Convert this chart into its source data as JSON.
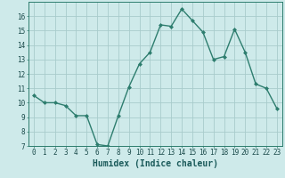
{
  "x": [
    0,
    1,
    2,
    3,
    4,
    5,
    6,
    7,
    8,
    9,
    10,
    11,
    12,
    13,
    14,
    15,
    16,
    17,
    18,
    19,
    20,
    21,
    22,
    23
  ],
  "y": [
    10.5,
    10.0,
    10.0,
    9.8,
    9.1,
    9.1,
    7.1,
    7.0,
    9.1,
    11.1,
    12.7,
    13.5,
    15.4,
    15.3,
    16.5,
    15.7,
    14.9,
    13.0,
    13.2,
    15.1,
    13.5,
    11.3,
    11.0,
    9.6
  ],
  "line_color": "#2d7d6e",
  "marker": "D",
  "marker_size": 2.0,
  "bg_color": "#ceeaea",
  "grid_color": "#a8cccc",
  "xlabel": "Humidex (Indice chaleur)",
  "ylim": [
    7,
    17
  ],
  "xlim": [
    -0.5,
    23.5
  ],
  "yticks": [
    7,
    8,
    9,
    10,
    11,
    12,
    13,
    14,
    15,
    16
  ],
  "xticks": [
    0,
    1,
    2,
    3,
    4,
    5,
    6,
    7,
    8,
    9,
    10,
    11,
    12,
    13,
    14,
    15,
    16,
    17,
    18,
    19,
    20,
    21,
    22,
    23
  ],
  "tick_fontsize": 5.5,
  "label_fontsize": 7.0
}
